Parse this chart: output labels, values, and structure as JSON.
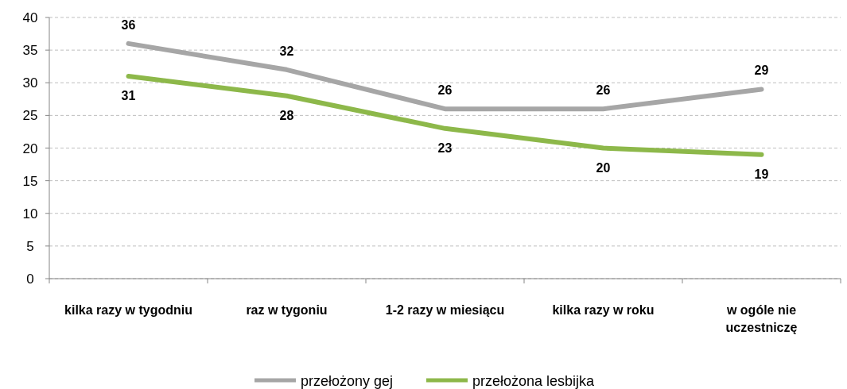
{
  "chart_data": {
    "type": "line",
    "categories": [
      "kilka razy w tygodniu",
      "raz w tygoniu",
      "1-2 razy w miesiącu",
      "kilka razy w roku",
      "w ogóle nie uczestniczę"
    ],
    "series": [
      {
        "name": "przełożony gej",
        "color": "#a6a6a6",
        "values": [
          36,
          32,
          26,
          26,
          29
        ]
      },
      {
        "name": "przełożona lesbijka",
        "color": "#8db84a",
        "values": [
          31,
          28,
          23,
          20,
          19
        ]
      }
    ],
    "ylim": [
      0,
      40
    ],
    "yticks": [
      0,
      5,
      10,
      15,
      20,
      25,
      30,
      35,
      40
    ],
    "grid": "y",
    "legend": "bottom",
    "data_labels": true,
    "marker": "none",
    "line_style": "solid"
  }
}
